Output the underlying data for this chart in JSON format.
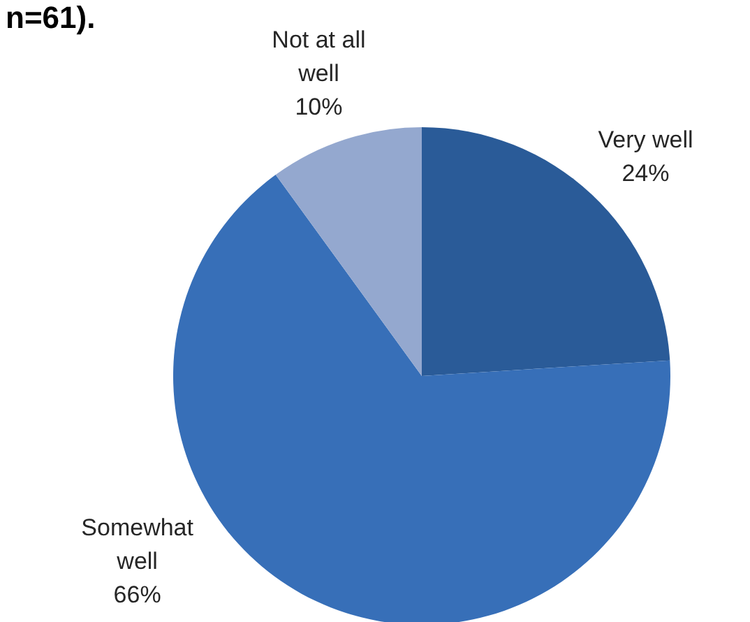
{
  "chart_data": {
    "type": "pie",
    "title": "n=61).",
    "categories": [
      "Very well",
      "Somewhat well",
      "Not at all well"
    ],
    "values": [
      24,
      66,
      10
    ],
    "value_labels": [
      "24%",
      "66%",
      "10%"
    ],
    "colors": [
      "#2a5b98",
      "#376fb8",
      "#94a8cf"
    ]
  }
}
